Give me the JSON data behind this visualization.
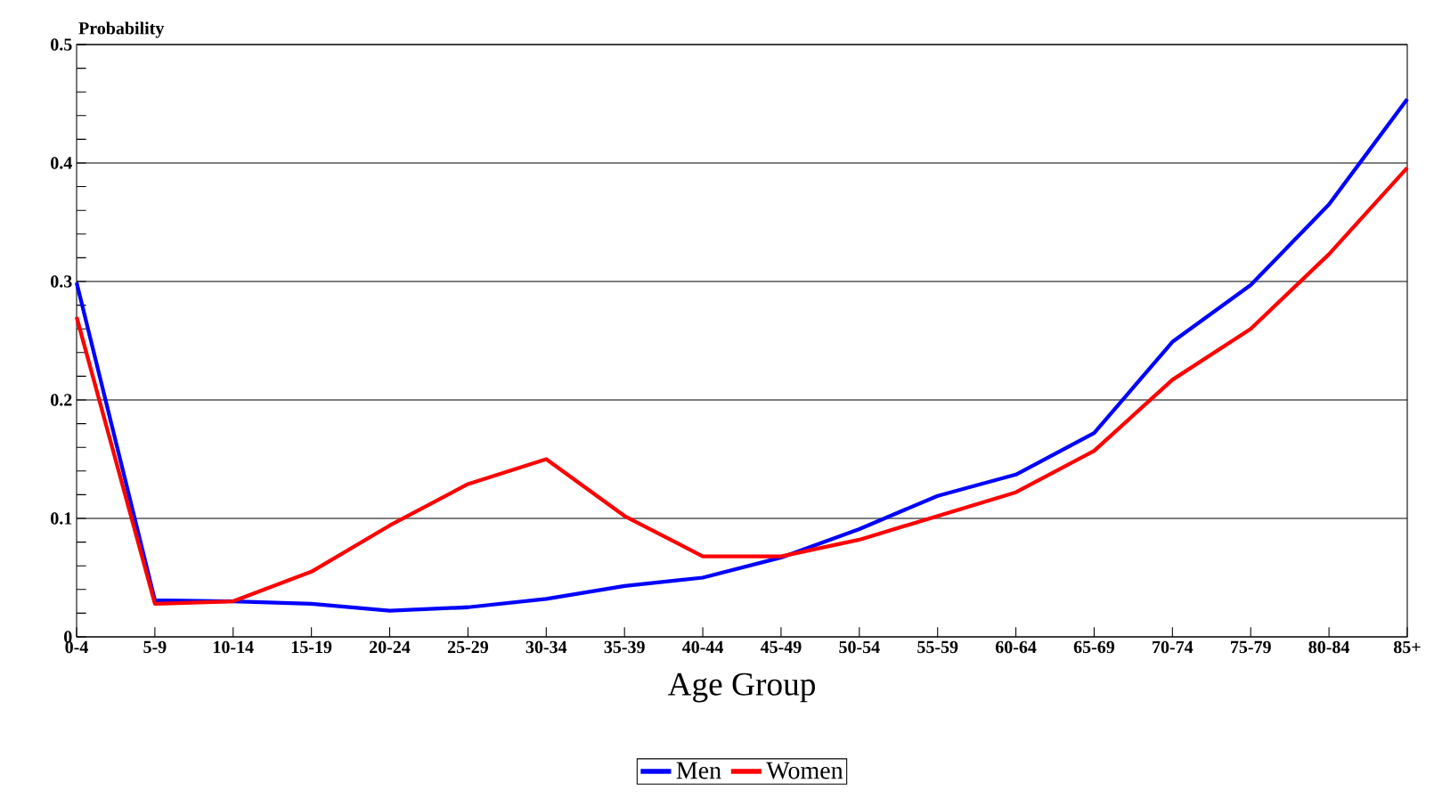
{
  "chart_data": {
    "type": "line",
    "ylabel": "Probability",
    "xlabel": "Age Group",
    "categories": [
      "0-4",
      "5-9",
      "10-14",
      "15-19",
      "20-24",
      "25-29",
      "30-34",
      "35-39",
      "40-44",
      "45-49",
      "50-54",
      "55-59",
      "60-64",
      "65-69",
      "70-74",
      "75-79",
      "80-84",
      "85+"
    ],
    "series": [
      {
        "name": "Men",
        "color": "#0000ff",
        "values": [
          0.299,
          0.031,
          0.03,
          0.028,
          0.022,
          0.025,
          0.032,
          0.043,
          0.05,
          0.067,
          0.091,
          0.119,
          0.137,
          0.172,
          0.249,
          0.297,
          0.365,
          0.454
        ]
      },
      {
        "name": "Women",
        "color": "#ff0000",
        "values": [
          0.27,
          0.028,
          0.03,
          0.055,
          0.094,
          0.129,
          0.15,
          0.102,
          0.068,
          0.068,
          0.082,
          0.102,
          0.122,
          0.157,
          0.217,
          0.26,
          0.323,
          0.396
        ]
      }
    ],
    "ylim": [
      0,
      0.5
    ],
    "yticks": [
      0,
      0.1,
      0.2,
      0.3,
      0.4,
      0.5
    ],
    "grid": "y",
    "legend": "bottom",
    "marker": "none",
    "line_style": "solid"
  }
}
